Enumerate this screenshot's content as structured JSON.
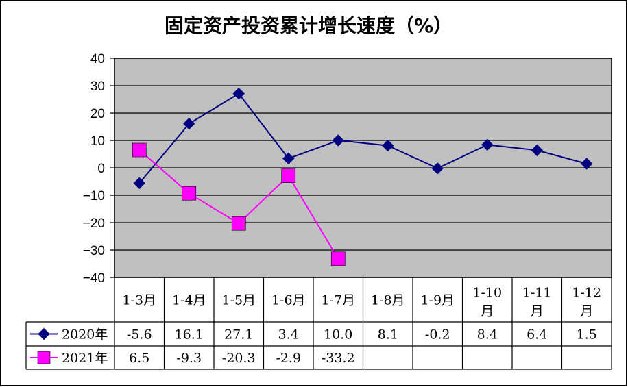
{
  "chart_data": {
    "type": "line",
    "title": "固定资产投资累计增长速度（%）",
    "categories": [
      "1-3月",
      "1-4月",
      "1-5月",
      "1-6月",
      "1-7月",
      "1-8月",
      "1-9月",
      "1-10\n月",
      "1-11\n月",
      "1-12\n月"
    ],
    "series": [
      {
        "name": "2020年",
        "values": [
          -5.6,
          16.1,
          27.1,
          3.4,
          10.0,
          8.1,
          -0.2,
          8.4,
          6.4,
          1.5
        ],
        "labels": [
          "-5.6",
          "16.1",
          "27.1",
          "3.4",
          "10.0",
          "8.1",
          "-0.2",
          "8.4",
          "6.4",
          "1.5"
        ],
        "color": "#000080",
        "marker": "diamond"
      },
      {
        "name": "2021年",
        "values": [
          6.5,
          -9.3,
          -20.3,
          -2.9,
          -33.2,
          null,
          null,
          null,
          null,
          null
        ],
        "labels": [
          "6.5",
          "-9.3",
          "-20.3",
          "-2.9",
          "-33.2",
          "",
          "",
          "",
          "",
          ""
        ],
        "color": "#ff00ff",
        "marker": "square"
      }
    ],
    "ylim": [
      -40,
      40
    ],
    "yticks": [
      40,
      30,
      20,
      10,
      0,
      -10,
      -20,
      -30,
      -40
    ],
    "ytick_labels": [
      "40",
      "30",
      "20",
      "10",
      "0",
      "−10",
      "−20",
      "−30",
      "−40"
    ],
    "xlabel": "",
    "ylabel": "",
    "grid": true,
    "plot_background": "#c0c0c0",
    "legend": "data-table"
  }
}
